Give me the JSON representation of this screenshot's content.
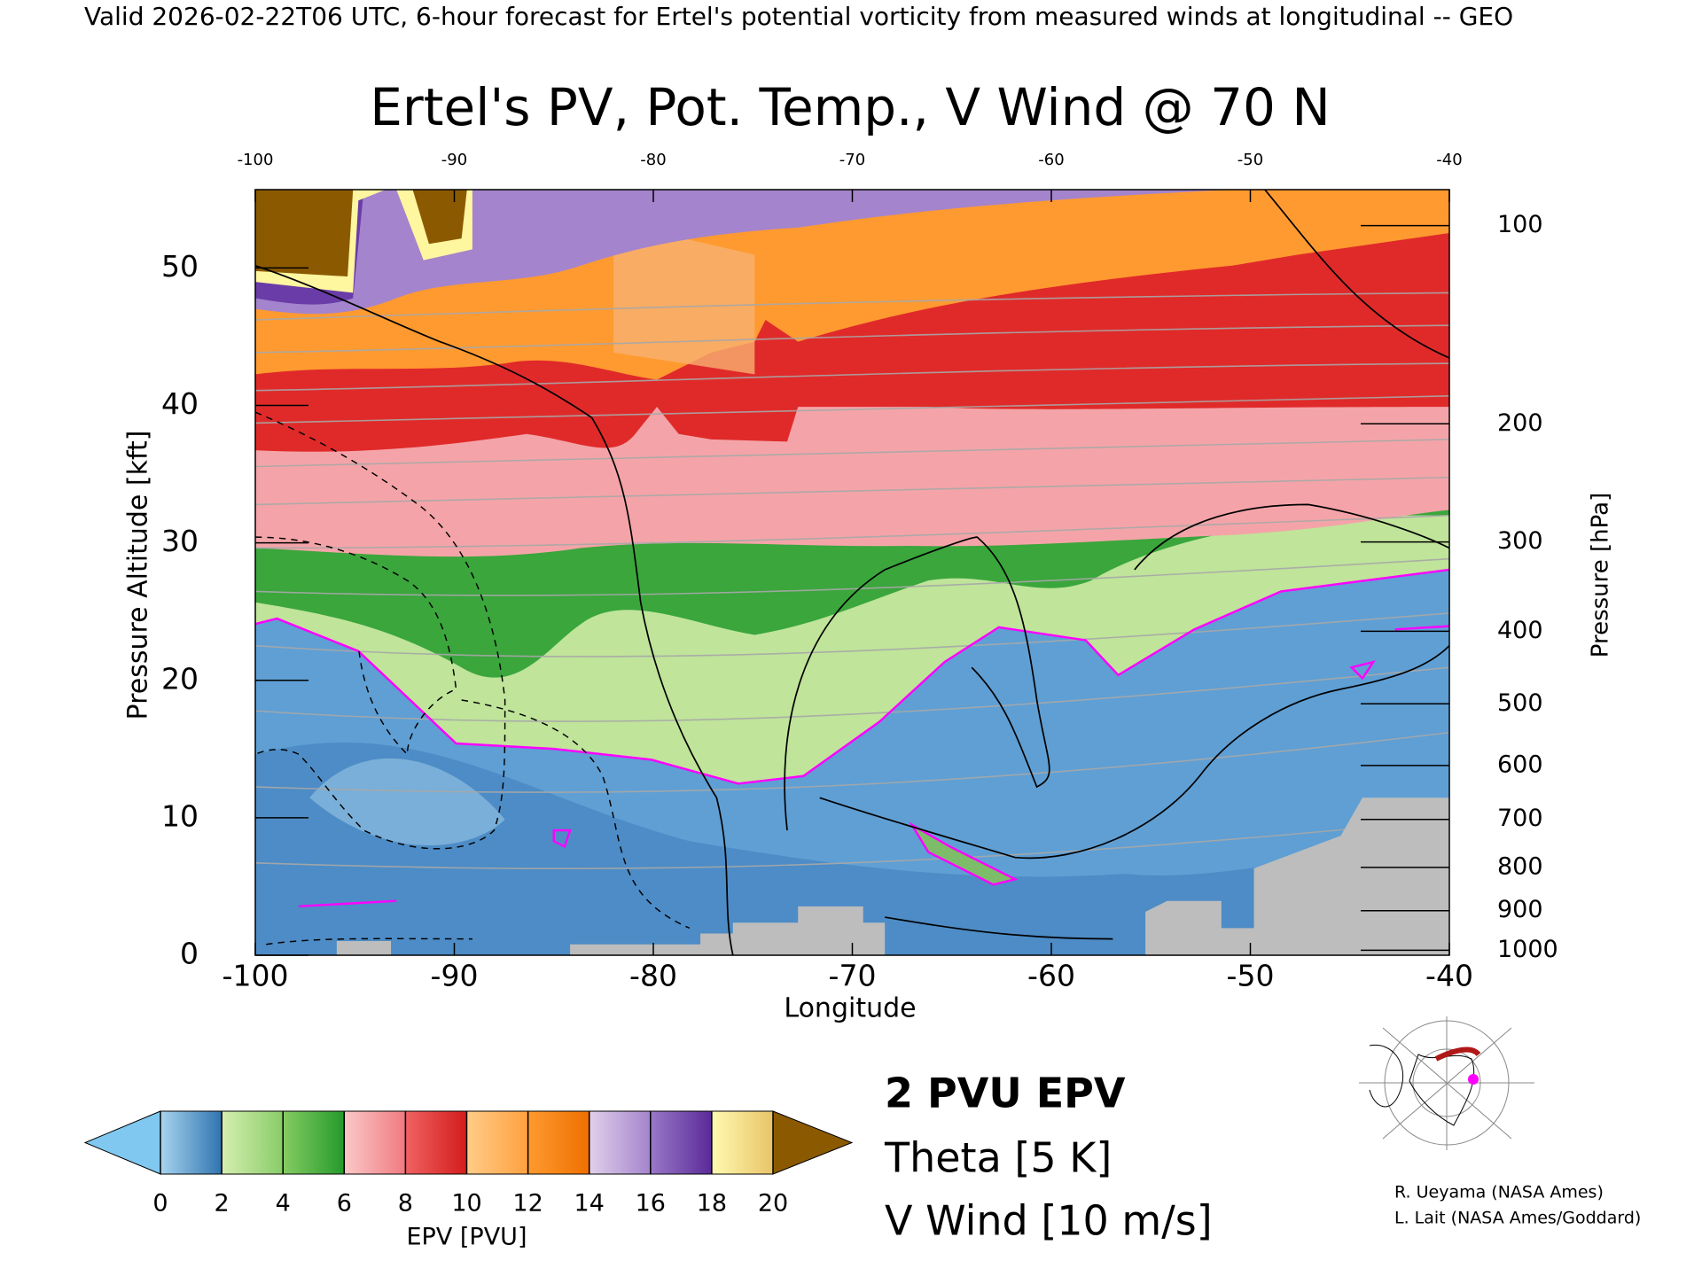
{
  "chart_data": {
    "type": "cross-section",
    "header": "Valid 2026-02-22T06 UTC, 6-hour forecast for Ertel's potential vorticity from measured winds at longitudinal -- GEO",
    "title": "Ertel's PV, Pot. Temp., V Wind @ 70 N",
    "x_label": "Longitude",
    "y_label": "Pressure Altitude [kft]",
    "y2_label": "Pressure [hPa]",
    "xlim": [
      -100,
      -40
    ],
    "xticks": [
      -100,
      -90,
      -80,
      -70,
      -60,
      -50,
      -40
    ],
    "top_xticks": [
      -100,
      -90,
      -80,
      -70,
      -60,
      -50,
      -40
    ],
    "ylim": [
      0,
      55.7
    ],
    "yticks": [
      0,
      10,
      20,
      30,
      40,
      50
    ],
    "y2ticks": [
      100,
      200,
      300,
      400,
      500,
      600,
      700,
      800,
      900,
      1000
    ],
    "colorbar": {
      "label": "EPV [PVU]",
      "levels": [
        0,
        2,
        4,
        6,
        8,
        10,
        12,
        14,
        16,
        18,
        20
      ],
      "colors": [
        [
          "#a8d4ee",
          "#2f74b0"
        ],
        [
          "#d6eeb0",
          "#88cc68"
        ],
        [
          "#86cc62",
          "#249a2c"
        ],
        [
          "#fbc8c8",
          "#f07a80"
        ],
        [
          "#f06262",
          "#d41c1c"
        ],
        [
          "#ffcc88",
          "#ffa040"
        ],
        [
          "#ff9a30",
          "#ee7000"
        ],
        [
          "#e0d0ea",
          "#a484cc"
        ],
        [
          "#9a78c8",
          "#5a2a98"
        ],
        [
          "#fffab0",
          "#e8c468"
        ]
      ],
      "under_color": "#80c8f0",
      "over_color": "#8b5a00"
    },
    "legend": [
      {
        "name": "2 PVU EPV",
        "color": "#ff00ff"
      },
      {
        "name": "Theta [5 K]",
        "color": "#b0b0b0"
      },
      {
        "name": "V Wind [10 m/s]",
        "color": "#000000"
      }
    ],
    "credits": [
      "R. Ueyama (NASA Ames)",
      "L. Lait (NASA Ames/Goddard)"
    ]
  }
}
